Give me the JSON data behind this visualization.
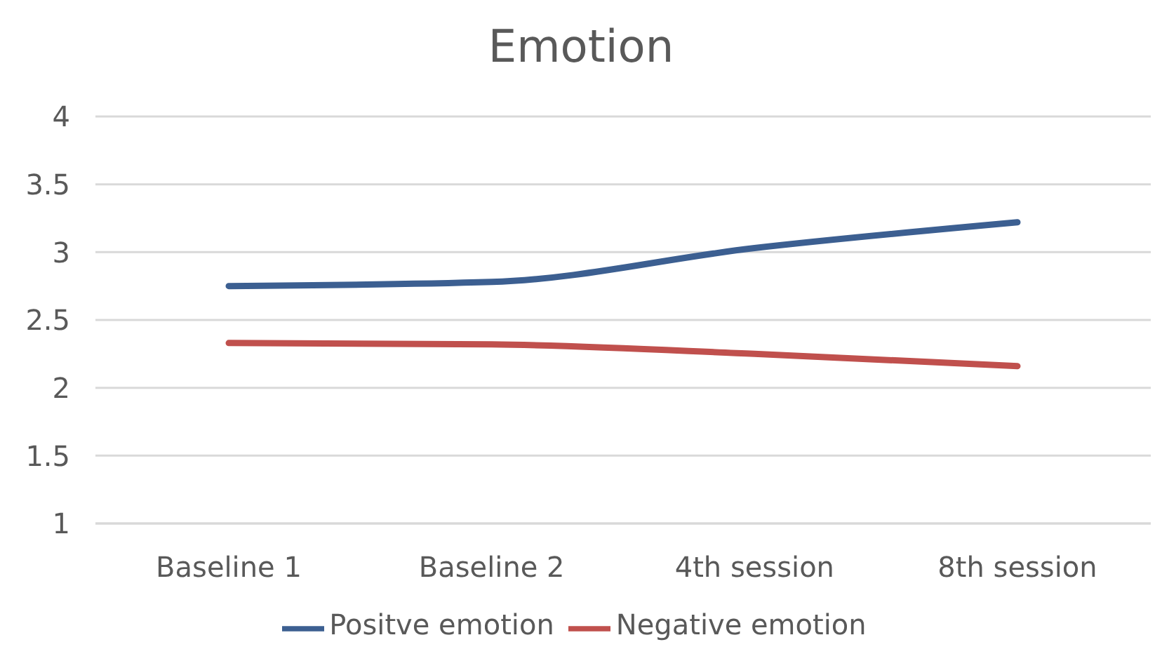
{
  "chart_data": {
    "type": "line",
    "title": "Emotion",
    "categories": [
      "Baseline 1",
      "Baseline 2",
      "4th session",
      "8th session"
    ],
    "series": [
      {
        "name": "Positve emotion",
        "color": "#3c5f91",
        "values": [
          2.75,
          2.78,
          3.03,
          3.22
        ]
      },
      {
        "name": "Negative emotion",
        "color": "#c0504d",
        "values": [
          2.33,
          2.32,
          2.25,
          2.16
        ]
      }
    ],
    "ylim": [
      1,
      4
    ],
    "yticks": [
      1,
      1.5,
      2,
      2.5,
      3,
      3.5,
      4
    ],
    "grid": "y",
    "legend": "bottom",
    "marker": "none",
    "line_style": "solid"
  }
}
